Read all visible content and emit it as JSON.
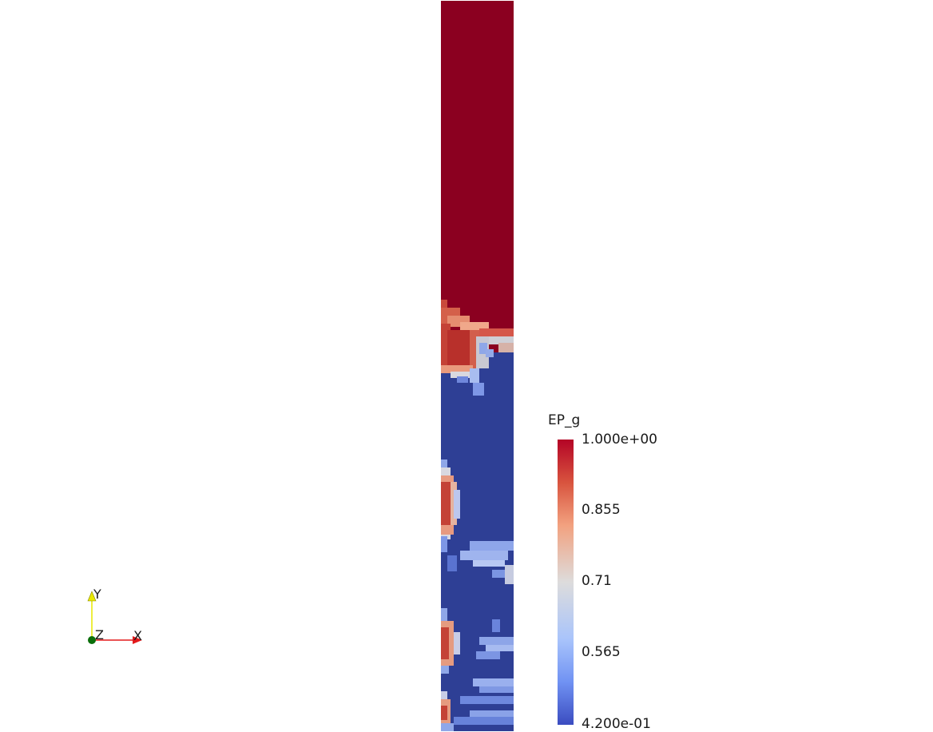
{
  "scalar_bar": {
    "title": "EP_g",
    "ticks": [
      "1.000e+00",
      "0.855",
      "0.71",
      "0.565",
      "4.200e-01"
    ],
    "colors": {
      "high": "#b40426",
      "mid": "#dddcdc",
      "low": "#3b4cc0"
    }
  },
  "axes": {
    "x_label": "X",
    "y_label": "Y",
    "z_label": "Z",
    "colors": {
      "x": "#e31a1c",
      "y": "#e8e800",
      "z": "#0a6e0a"
    }
  },
  "field": {
    "gas_color": "#8b0020",
    "bed_color": "#2d3f94"
  }
}
